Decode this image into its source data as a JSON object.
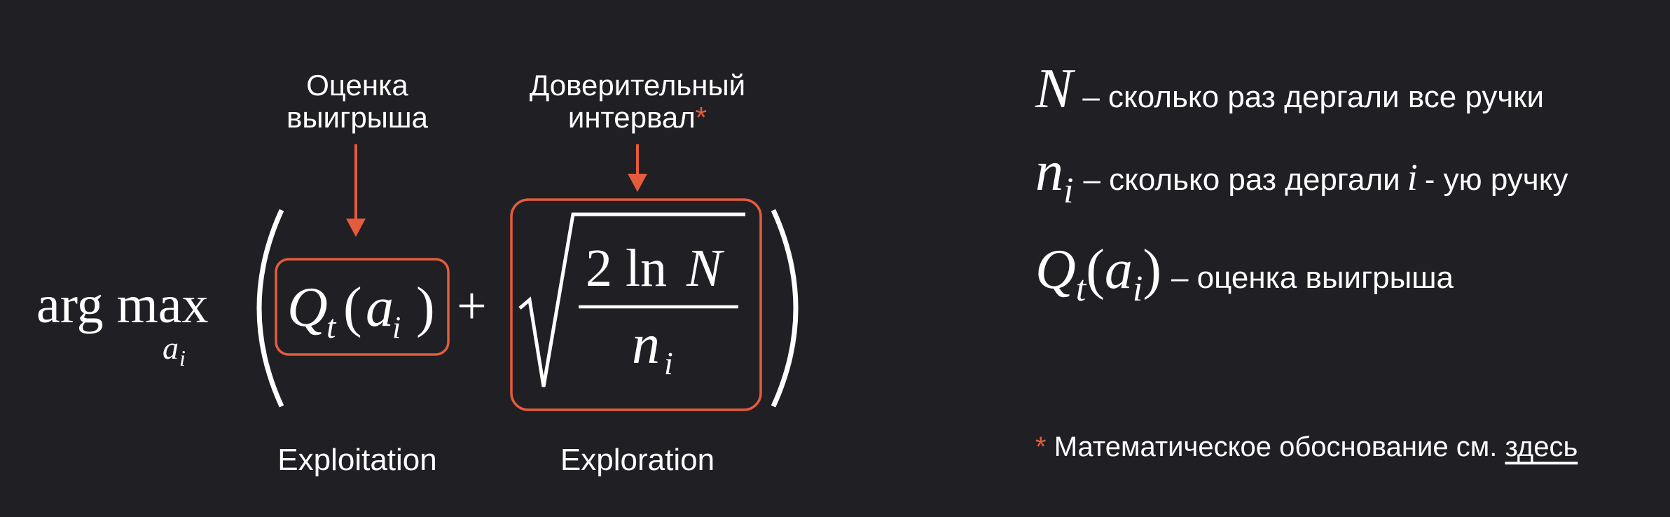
{
  "annotations": {
    "left_line1": "Оценка",
    "left_line2": "выигрыша",
    "right_line1": "Доверительный",
    "right_line2": "интервал",
    "right_star": "*"
  },
  "formula": {
    "argmax": "arg max",
    "argmax_sub": "a",
    "argmax_sub_index": "i",
    "q": "Q",
    "q_sub": "t",
    "q_paren_open": "(",
    "q_arg": "a",
    "q_arg_sub": "i",
    "q_paren_close": ")",
    "plus": "+",
    "numerator": "2 ln",
    "numerator_var": "N",
    "denominator": "n",
    "denominator_sub": "i"
  },
  "bottom_labels": {
    "exploitation": "Exploitation",
    "exploration": "Exploration"
  },
  "legend": {
    "row1_symbol": "N",
    "row1_text": "– сколько раз дергали все ручки",
    "row2_symbol": "n",
    "row2_sub": "i",
    "row2_text_a": "– сколько раз дергали",
    "row2_italic": "i",
    "row2_text_b": "- ую ручку",
    "row3_symbol": "Q",
    "row3_sub": "t",
    "row3_paren_open": "(",
    "row3_arg": "a",
    "row3_arg_sub": "i",
    "row3_paren_close": ")",
    "row3_text": "– оценка выигрыша"
  },
  "footnote": {
    "star": "*",
    "text": "Математическое обоснование см.",
    "link": "здесь"
  },
  "colors": {
    "background": "#202024",
    "accent": "#e55b3c",
    "text": "#ffffff"
  }
}
